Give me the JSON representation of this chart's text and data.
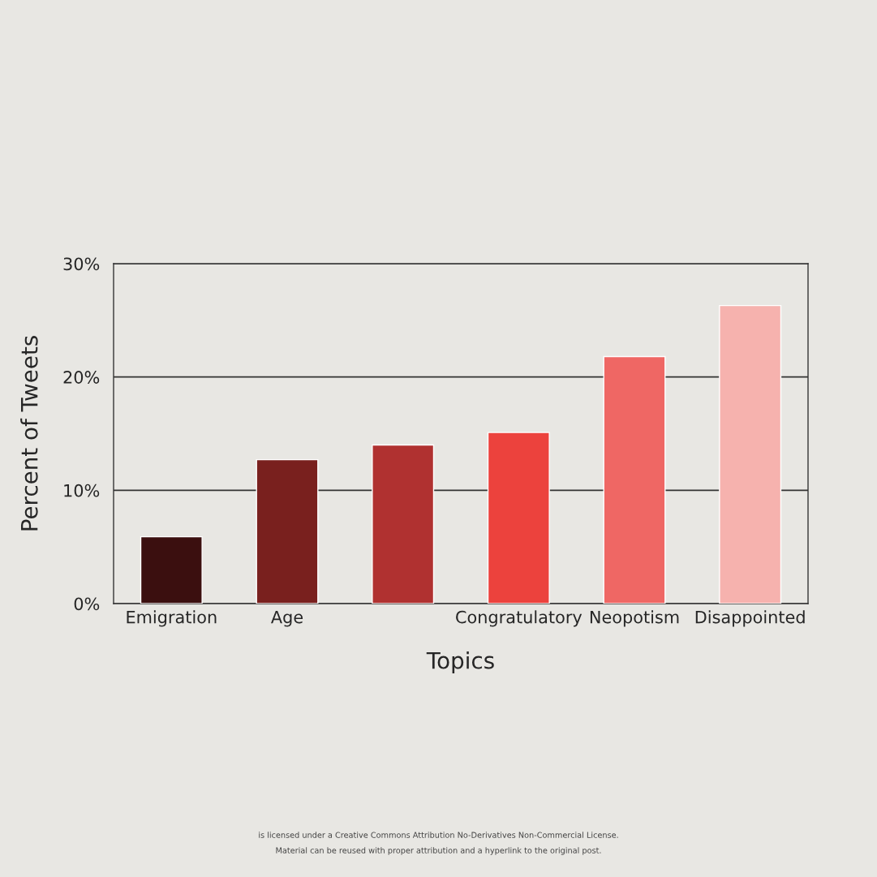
{
  "chart_data": {
    "type": "bar",
    "xlabel": "Topics",
    "ylabel": "Percent of Tweets",
    "categories": [
      "Emigration",
      "Age",
      null,
      "Congratulatory",
      "Neopotism",
      "Disappointed"
    ],
    "values": [
      5.9,
      12.7,
      14.0,
      15.1,
      21.8,
      26.3
    ],
    "colors": [
      "#3b0f0f",
      "#79201e",
      "#b03130",
      "#ec423d",
      "#ef6764",
      "#f6b2ae"
    ],
    "ylim": [
      0,
      30
    ],
    "yticks": [
      {
        "value": 0,
        "label": "0%"
      },
      {
        "value": 10,
        "label": "10%"
      },
      {
        "value": 20,
        "label": "20%"
      },
      {
        "value": 30,
        "label": "30%"
      }
    ],
    "grid": "y",
    "legend": false,
    "annotations": [
      "is licensed under a Creative Commons Attribution No-Derivatives Non-Commercial License.",
      "Material can be reused with proper attribution and a hyperlink to the original post."
    ]
  }
}
